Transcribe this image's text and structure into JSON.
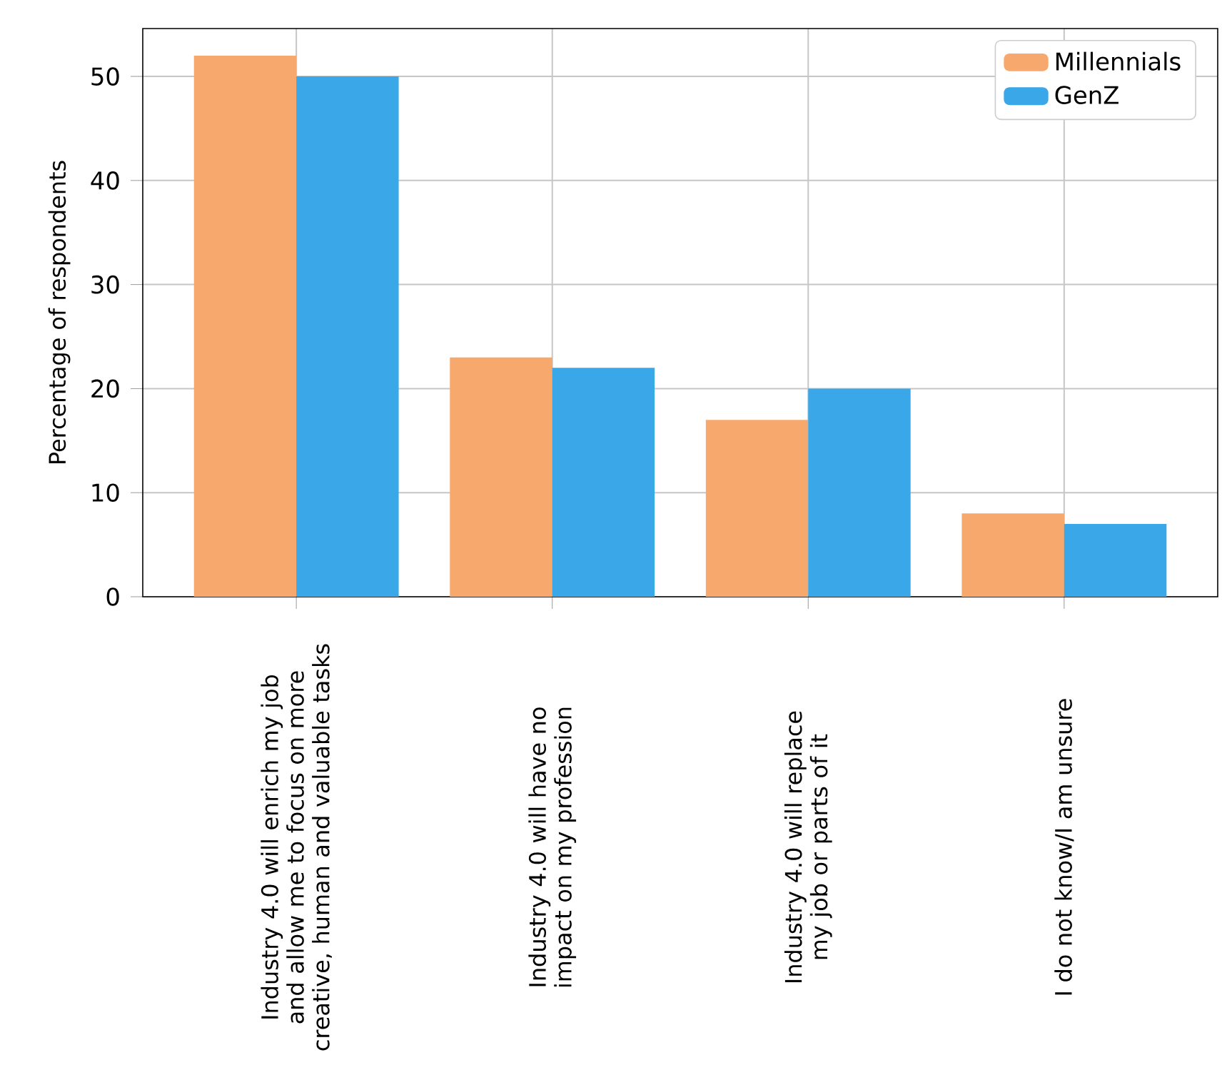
{
  "chart_data": {
    "type": "bar",
    "ylabel": "Percentage of respondents",
    "categories": [
      "Industry 4.0 will enrich my job and allow me to focus on more creative, human and valuable tasks",
      "Industry 4.0 will have no impact on my profession",
      "Industry 4.0 will replace my job or parts of it",
      "I do not know/I am unsure"
    ],
    "series": [
      {
        "name": "Millennials",
        "color": "#f7a86c",
        "values": [
          52,
          23,
          17,
          8
        ]
      },
      {
        "name": "GenZ",
        "color": "#3aa8e8",
        "values": [
          50,
          22,
          20,
          7
        ]
      }
    ],
    "ylim": [
      0,
      54.6
    ],
    "yticks": [
      0,
      10,
      20,
      30,
      40,
      50
    ],
    "grid": true,
    "legend": "top right"
  }
}
